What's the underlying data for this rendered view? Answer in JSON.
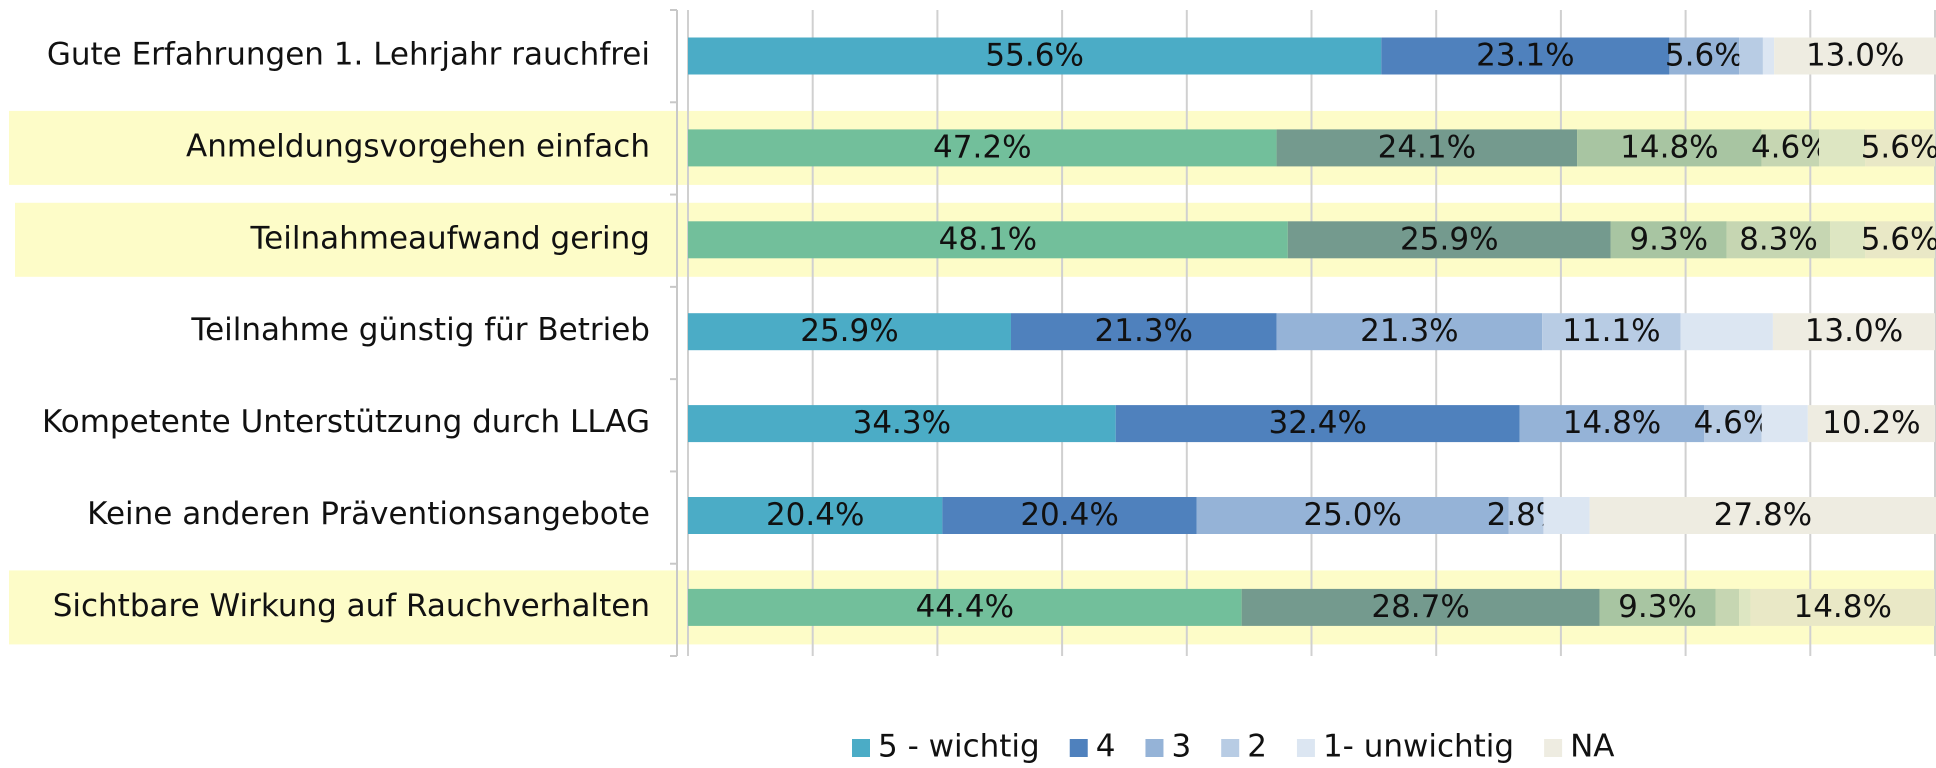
{
  "chart_data": {
    "type": "stacked-barh",
    "categories": [
      "Gute Erfahrungen 1. Lehrjahr rauchfrei",
      "Anmeldungsvorgehen einfach",
      "Teilnahmeaufwand gering",
      "Teilnahme günstig für Betrieb",
      "Kompetente Unterstützung durch LLAG",
      "Keine anderen Präventionsangebote",
      "Sichtbare Wirkung auf Rauchverhalten"
    ],
    "series": [
      {
        "name": "5 - wichtig",
        "color": "#4bacc6",
        "values": [
          55.6,
          47.2,
          48.1,
          25.9,
          34.3,
          20.4,
          44.4
        ],
        "value_labels": [
          "55.6%",
          "47.2%",
          "48.1%",
          "25.9%",
          "34.3%",
          "20.4%",
          "44.4%"
        ]
      },
      {
        "name": "4",
        "color": "#4f81bd",
        "values": [
          23.1,
          24.1,
          25.9,
          21.3,
          32.4,
          20.4,
          28.7
        ],
        "value_labels": [
          "23.1%",
          "24.1%",
          "25.9%",
          "21.3%",
          "32.4%",
          "20.4%",
          "28.7%"
        ]
      },
      {
        "name": "3",
        "color": "#95b3d7",
        "values": [
          5.6,
          14.8,
          9.3,
          21.3,
          14.8,
          25.0,
          9.3
        ],
        "value_labels": [
          "5.6%",
          "14.8%",
          "9.3%",
          "21.3%",
          "14.8%",
          "25.0%",
          "9.3%"
        ]
      },
      {
        "name": "2",
        "color": "#b8cce4",
        "values": [
          1.9,
          4.6,
          8.3,
          11.1,
          4.6,
          2.8,
          1.9
        ],
        "value_labels": [
          null,
          "4.6%",
          "8.3%",
          "11.1%",
          "4.6%",
          "2.8%",
          null
        ]
      },
      {
        "name": "1- unwichtig",
        "color": "#dce6f2",
        "values": [
          0.9,
          3.7,
          2.8,
          7.4,
          3.7,
          3.7,
          0.9
        ],
        "value_labels": [
          null,
          null,
          null,
          null,
          null,
          null,
          null
        ]
      },
      {
        "name": "NA",
        "color": "#eeece1",
        "values": [
          13.0,
          5.6,
          5.6,
          13.0,
          10.2,
          27.8,
          14.8
        ],
        "value_labels": [
          "13.0%",
          "5.6%",
          "5.6%",
          "13.0%",
          "10.2%",
          "27.8%",
          "14.8%"
        ]
      }
    ],
    "highlight": [
      false,
      true,
      true,
      false,
      false,
      false,
      true
    ],
    "highlight_palette": [
      "#72bf9b",
      "#749a8e",
      "#a8c5a2",
      "#c6d6b2",
      "#dde6c2",
      "#e9e8c6"
    ],
    "highlight_band_color": "#fdfcc8",
    "highlight_text_color": "#5c5c10",
    "xlim": [
      0,
      100
    ],
    "xticks": [
      0,
      10,
      20,
      30,
      40,
      50,
      60,
      70,
      80,
      90,
      100
    ],
    "grid": true,
    "legend": "bottom"
  }
}
